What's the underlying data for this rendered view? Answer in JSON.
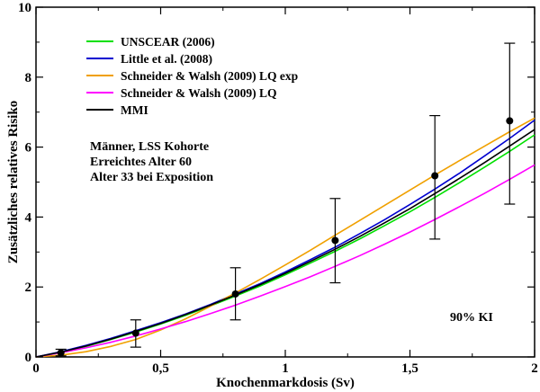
{
  "chart_data": {
    "type": "line",
    "xlabel": "Knochenmarkdosis (Sv)",
    "ylabel": "Zusätzliches relatives Risiko",
    "xlim": [
      0,
      2
    ],
    "ylim": [
      0,
      10
    ],
    "x_ticks": [
      {
        "value": 0,
        "label": "0"
      },
      {
        "value": 0.5,
        "label": "0,5"
      },
      {
        "value": 1,
        "label": "1"
      },
      {
        "value": 1.5,
        "label": "1,5"
      },
      {
        "value": 2,
        "label": "2"
      }
    ],
    "y_ticks": [
      {
        "value": 0,
        "label": "0"
      },
      {
        "value": 2,
        "label": "2"
      },
      {
        "value": 4,
        "label": "4"
      },
      {
        "value": 6,
        "label": "6"
      },
      {
        "value": 8,
        "label": "8"
      },
      {
        "value": 10,
        "label": "10"
      }
    ],
    "legend_position": "top-left",
    "series": [
      {
        "name": "UNSCEAR (2006)",
        "color": "#00e000",
        "x": [
          0,
          0.1,
          0.2,
          0.3,
          0.4,
          0.5,
          0.6,
          0.7,
          0.8,
          0.9,
          1.0,
          1.1,
          1.2,
          1.3,
          1.4,
          1.5,
          1.6,
          1.7,
          1.8,
          1.9,
          2.0
        ],
        "y": [
          0,
          0.13,
          0.3,
          0.5,
          0.71,
          0.94,
          1.19,
          1.46,
          1.74,
          2.03,
          2.35,
          2.68,
          3.02,
          3.38,
          3.76,
          4.15,
          4.56,
          4.99,
          5.43,
          5.88,
          6.35
        ]
      },
      {
        "name": "Little et al. (2008)",
        "color": "#0000d0",
        "x": [
          0,
          0.1,
          0.2,
          0.3,
          0.4,
          0.5,
          0.6,
          0.7,
          0.8,
          0.9,
          1.0,
          1.1,
          1.2,
          1.3,
          1.4,
          1.5,
          1.6,
          1.7,
          1.8,
          1.9,
          2.0
        ],
        "y": [
          0,
          0.15,
          0.33,
          0.53,
          0.75,
          0.98,
          1.23,
          1.5,
          1.8,
          2.1,
          2.43,
          2.78,
          3.14,
          3.53,
          3.93,
          4.36,
          4.8,
          5.26,
          5.75,
          6.25,
          6.77
        ]
      },
      {
        "name": "Schneider & Walsh (2009) LQ exp",
        "color": "#f0a000",
        "x": [
          0,
          0.1,
          0.2,
          0.3,
          0.4,
          0.5,
          0.6,
          0.7,
          0.8,
          0.9,
          1.0,
          1.1,
          1.2,
          1.3,
          1.4,
          1.5,
          1.6,
          1.7,
          1.8,
          1.9,
          2.0
        ],
        "y": [
          0,
          0.05,
          0.15,
          0.3,
          0.5,
          0.77,
          1.09,
          1.45,
          1.83,
          2.22,
          2.63,
          3.05,
          3.48,
          3.91,
          4.34,
          4.77,
          5.2,
          5.62,
          6.03,
          6.44,
          6.83
        ]
      },
      {
        "name": "Schneider & Walsh (2009) LQ",
        "color": "#ff00ff",
        "x": [
          0,
          0.1,
          0.2,
          0.3,
          0.4,
          0.5,
          0.6,
          0.7,
          0.8,
          0.9,
          1.0,
          1.1,
          1.2,
          1.3,
          1.4,
          1.5,
          1.6,
          1.7,
          1.8,
          1.9,
          2.0
        ],
        "y": [
          0,
          0.12,
          0.26,
          0.42,
          0.6,
          0.8,
          1.01,
          1.24,
          1.48,
          1.74,
          2.01,
          2.29,
          2.59,
          2.9,
          3.23,
          3.57,
          3.93,
          4.3,
          4.68,
          5.08,
          5.49
        ]
      },
      {
        "name": "MMI",
        "color": "#000000",
        "x": [
          0,
          0.1,
          0.2,
          0.3,
          0.4,
          0.5,
          0.6,
          0.7,
          0.8,
          0.9,
          1.0,
          1.1,
          1.2,
          1.3,
          1.4,
          1.5,
          1.6,
          1.7,
          1.8,
          1.9,
          2.0
        ],
        "y": [
          0,
          0.14,
          0.31,
          0.51,
          0.73,
          0.96,
          1.21,
          1.48,
          1.77,
          2.07,
          2.39,
          2.73,
          3.08,
          3.45,
          3.84,
          4.24,
          4.67,
          5.11,
          5.56,
          6.03,
          6.5
        ]
      }
    ],
    "data_points": {
      "x": [
        0.1,
        0.4,
        0.8,
        1.2,
        1.6,
        1.9
      ],
      "y": [
        0.12,
        0.68,
        1.8,
        3.33,
        5.18,
        6.75
      ],
      "ci_low": [
        0.03,
        0.28,
        1.06,
        2.12,
        3.37,
        4.37
      ],
      "ci_high": [
        0.22,
        1.06,
        2.55,
        4.53,
        6.9,
        8.97
      ]
    },
    "annotation_lines": [
      "Männer, LSS Kohorte",
      "Erreichtes Alter 60",
      "Alter 33 bei Exposition"
    ],
    "ci_label": "90% KI"
  }
}
